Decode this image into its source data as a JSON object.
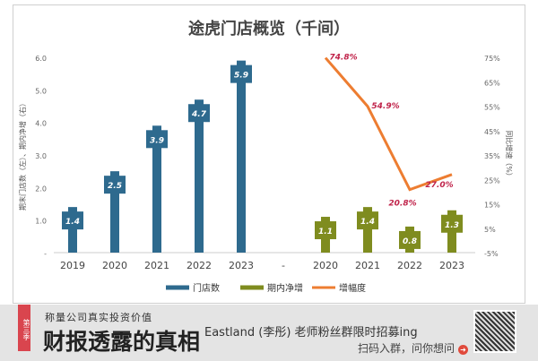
{
  "chart_data": {
    "type": "bar+line",
    "title": "途虎门店概览（千间）",
    "left_ylabel": "期末门店数（左）、期内净增（右）",
    "right_ylabel": "同比增速（%）",
    "left_ylim": [
      0,
      6
    ],
    "left_ticks": [
      "-",
      "1.0",
      "2.0",
      "3.0",
      "4.0",
      "5.0",
      "6.0"
    ],
    "right_ylim": [
      -5,
      75
    ],
    "right_ticks": [
      "-5%",
      "5%",
      "15%",
      "25%",
      "35%",
      "45%",
      "55%",
      "65%",
      "75%"
    ],
    "categories": [
      "2019",
      "2020",
      "2021",
      "2022",
      "2023",
      "-",
      "2020",
      "2021",
      "2022",
      "2023"
    ],
    "series": [
      {
        "name": "门店数",
        "type": "bar",
        "color": "#2e6a8e",
        "x": [
          "2019",
          "2020",
          "2021",
          "2022",
          "2023"
        ],
        "values": [
          1.4,
          2.5,
          3.9,
          4.7,
          5.9
        ],
        "labels": [
          "1.4",
          "2.5",
          "3.9",
          "4.7",
          "5.9"
        ]
      },
      {
        "name": "期内净增",
        "type": "bar",
        "color": "#7f8c1f",
        "x": [
          "2020",
          "2021",
          "2022",
          "2023"
        ],
        "values": [
          1.1,
          1.4,
          0.8,
          1.3
        ],
        "labels": [
          "1.1",
          "1.4",
          "0.8",
          "1.3"
        ]
      },
      {
        "name": "增幅度",
        "type": "line",
        "color": "#ed7d31",
        "axis": "right",
        "x": [
          "2020",
          "2021",
          "2022",
          "2023"
        ],
        "values": [
          74.8,
          54.9,
          20.8,
          27.0
        ],
        "labels": [
          "74.8%",
          "54.9%",
          "20.8%",
          "27.0%"
        ],
        "label_color": "#c0234a"
      }
    ],
    "legend_position": "bottom"
  },
  "banner": {
    "ribbon": "第三季",
    "subtitle": "称量公司真实投资价值",
    "headline": "财报透露的真相",
    "line1": "Eastland (李彤) 老师粉丝群限时招募ing",
    "line2": "扫码入群，问你想问"
  }
}
